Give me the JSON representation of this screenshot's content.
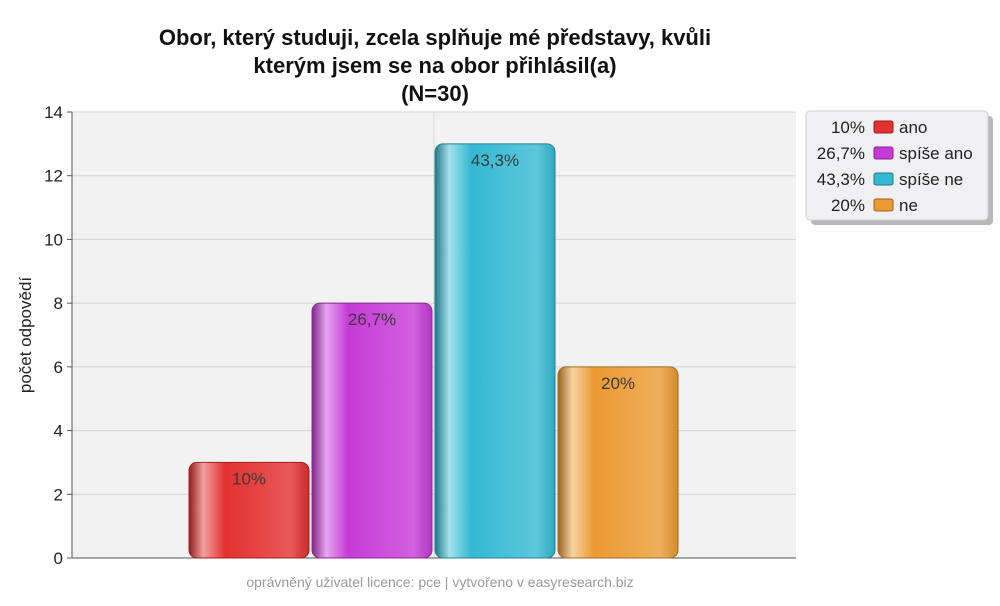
{
  "chart_data": {
    "type": "bar",
    "title_lines": [
      "Obor, který studuji, zcela splňuje mé představy, kvůli",
      "kterým jsem se na obor přihlásil(a)",
      "(N=30)"
    ],
    "ylabel": "počet odpovědí",
    "ylim": [
      0,
      14
    ],
    "yticks": [
      "0",
      "2",
      "4",
      "6",
      "8",
      "10",
      "12",
      "14"
    ],
    "grid": true,
    "legend_position": "top-right",
    "series": [
      {
        "name": "ano",
        "value": 3,
        "label": "10%",
        "color": "#e3302f"
      },
      {
        "name": "spíše ano",
        "value": 8,
        "label": "26,7%",
        "color": "#c63ad6"
      },
      {
        "name": "spíše ne",
        "value": 13,
        "label": "43,3%",
        "color": "#34b9d3"
      },
      {
        "name": "ne",
        "value": 6,
        "label": "20%",
        "color": "#eb9a32"
      }
    ]
  },
  "footer": "oprávněný uživatel licence: pce | vytvořeno v easyresearch.biz"
}
